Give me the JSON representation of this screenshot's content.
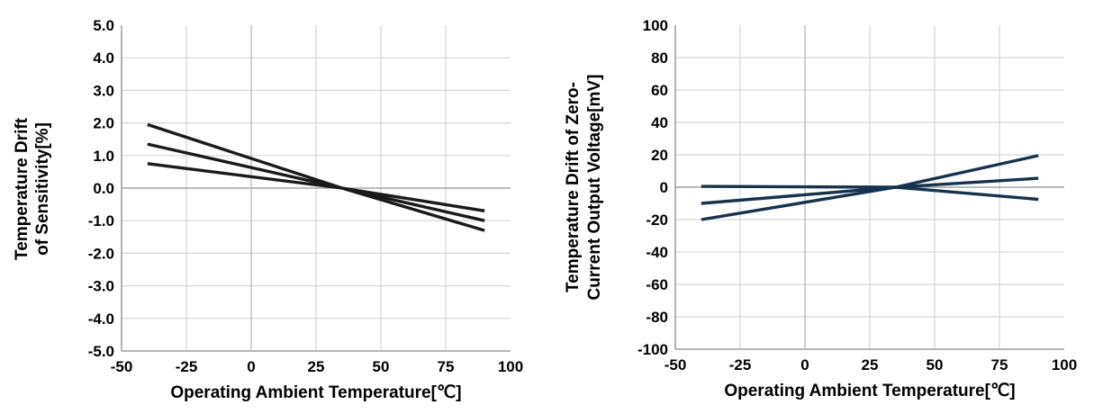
{
  "chart_data": [
    {
      "type": "line",
      "xlabel": "Operating Ambient Temperature[℃]",
      "ylabel_lines": [
        "Temperature Drift",
        "of Sensitivity[%]"
      ],
      "x_ticks": [
        "-50",
        "-25",
        "0",
        "25",
        "50",
        "75",
        "100"
      ],
      "y_ticks": [
        "5.0",
        "4.0",
        "3.0",
        "2.0",
        "1.0",
        "0.0",
        "-1.0",
        "-2.0",
        "-3.0",
        "-4.0",
        "-5.0"
      ],
      "xlim": [
        -50,
        100
      ],
      "ylim": [
        -5,
        5
      ],
      "grid": true,
      "line_color": "#1a1a1a",
      "series": [
        {
          "x": [
            -40,
            35,
            90
          ],
          "y": [
            1.95,
            0,
            -1.3
          ]
        },
        {
          "x": [
            -40,
            35,
            90
          ],
          "y": [
            1.35,
            0,
            -1.0
          ]
        },
        {
          "x": [
            -40,
            35,
            90
          ],
          "y": [
            0.75,
            0,
            -0.7
          ]
        }
      ]
    },
    {
      "type": "line",
      "xlabel": "Operating Ambient Temperature[℃]",
      "ylabel_lines": [
        "Temperature Drift of Zero-",
        "Current Output Voltage[mV]"
      ],
      "x_ticks": [
        "-50",
        "-25",
        "0",
        "25",
        "50",
        "75",
        "100"
      ],
      "y_ticks": [
        "100",
        "80",
        "60",
        "40",
        "20",
        "0",
        "-20",
        "-40",
        "-60",
        "-80",
        "-100"
      ],
      "xlim": [
        -50,
        100
      ],
      "ylim": [
        -100,
        100
      ],
      "grid": true,
      "line_color": "#17324d",
      "series": [
        {
          "x": [
            -40,
            35,
            90
          ],
          "y": [
            -20,
            0,
            19.5
          ]
        },
        {
          "x": [
            -40,
            35,
            90
          ],
          "y": [
            -10,
            0,
            5.5
          ]
        },
        {
          "x": [
            -40,
            35,
            90
          ],
          "y": [
            0.5,
            0,
            -7.5
          ]
        }
      ]
    }
  ]
}
